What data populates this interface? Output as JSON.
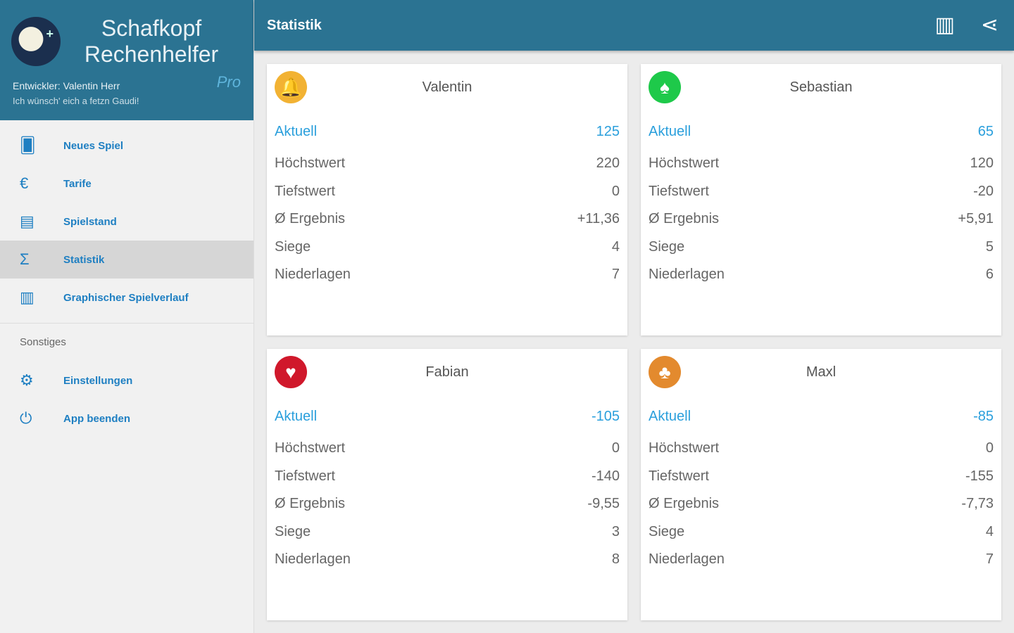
{
  "drawer": {
    "app_title": "Schafkopf Rechenhelfer",
    "pro": "Pro",
    "developer": "Entwickler: Valentin Herr",
    "motto": "Ich wünsch' eich a fetzn Gaudi!",
    "items": [
      {
        "label": "Neues Spiel",
        "icon": "cards-icon"
      },
      {
        "label": "Tarife",
        "icon": "euro-icon"
      },
      {
        "label": "Spielstand",
        "icon": "scoreboard-icon"
      },
      {
        "label": "Statistik",
        "icon": "sigma-icon"
      },
      {
        "label": "Graphischer Spielverlauf",
        "icon": "chart-icon"
      }
    ],
    "section": "Sonstiges",
    "other": [
      {
        "label": "Einstellungen",
        "icon": "gear-icon"
      },
      {
        "label": "App beenden",
        "icon": "power-icon"
      }
    ]
  },
  "toolbar": {
    "title": "Statistik"
  },
  "labels": {
    "current": "Aktuell",
    "max": "Höchstwert",
    "min": "Tiefstwert",
    "avg": "Ø Ergebnis",
    "wins": "Siege",
    "losses": "Niederlagen"
  },
  "players": [
    {
      "name": "Valentin",
      "suit": "schellen",
      "color": "#f2b233",
      "current": "125",
      "max": "220",
      "min": "0",
      "avg": "+11,36",
      "wins": "4",
      "losses": "7"
    },
    {
      "name": "Sebastian",
      "suit": "gras",
      "color": "#1ec94a",
      "current": "65",
      "max": "120",
      "min": "-20",
      "avg": "+5,91",
      "wins": "5",
      "losses": "6"
    },
    {
      "name": "Fabian",
      "suit": "herz",
      "color": "#d0182b",
      "current": "-105",
      "max": "0",
      "min": "-140",
      "avg": "-9,55",
      "wins": "3",
      "losses": "8"
    },
    {
      "name": "Maxl",
      "suit": "eichel",
      "color": "#e38a2e",
      "current": "-85",
      "max": "0",
      "min": "-155",
      "avg": "-7,73",
      "wins": "4",
      "losses": "7"
    }
  ]
}
